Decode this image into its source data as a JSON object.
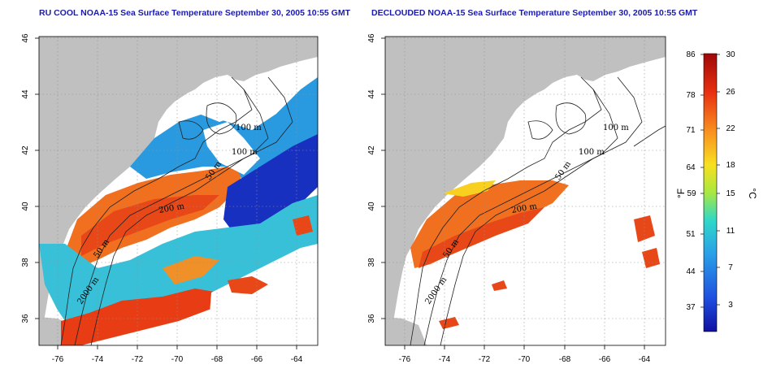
{
  "panels": [
    {
      "title": "RU COOL NOAA-15 Sea Surface Temperature September 30, 2005 10:55 GMT",
      "contour_labels": [
        "100 m",
        "100 m",
        "50 m",
        "200 m",
        "50 m",
        "2000 m"
      ]
    },
    {
      "title": "DECLOUDED NOAA-15 Sea Surface Temperature September 30, 2005 10:55 GMT",
      "contour_labels": [
        "100 m",
        "100 m",
        "50 m",
        "200 m",
        "50 m",
        "2000 m"
      ]
    }
  ],
  "axes": {
    "longitude_ticks": [
      "-76",
      "-74",
      "-72",
      "-70",
      "-68",
      "-66",
      "-64"
    ],
    "latitude_ticks": [
      "36",
      "38",
      "40",
      "42",
      "44",
      "46"
    ]
  },
  "colorbar": {
    "fahrenheit_ticks": [
      "86",
      "78",
      "71",
      "64",
      "59",
      "51",
      "44",
      "37"
    ],
    "celsius_ticks": [
      "30",
      "26",
      "22",
      "18",
      "15",
      "11",
      "7",
      "3"
    ],
    "fahrenheit_unit": "°F",
    "celsius_unit": "°C",
    "colors": [
      "#1010a0",
      "#1f4fe0",
      "#2aa0e8",
      "#30d8c8",
      "#a8e840",
      "#f8e020",
      "#f89020",
      "#e83010",
      "#a00808"
    ]
  },
  "colors": {
    "land": "#c0c0c0",
    "ocean_cloud": "#ffffff",
    "title": "#1a1ab0"
  }
}
